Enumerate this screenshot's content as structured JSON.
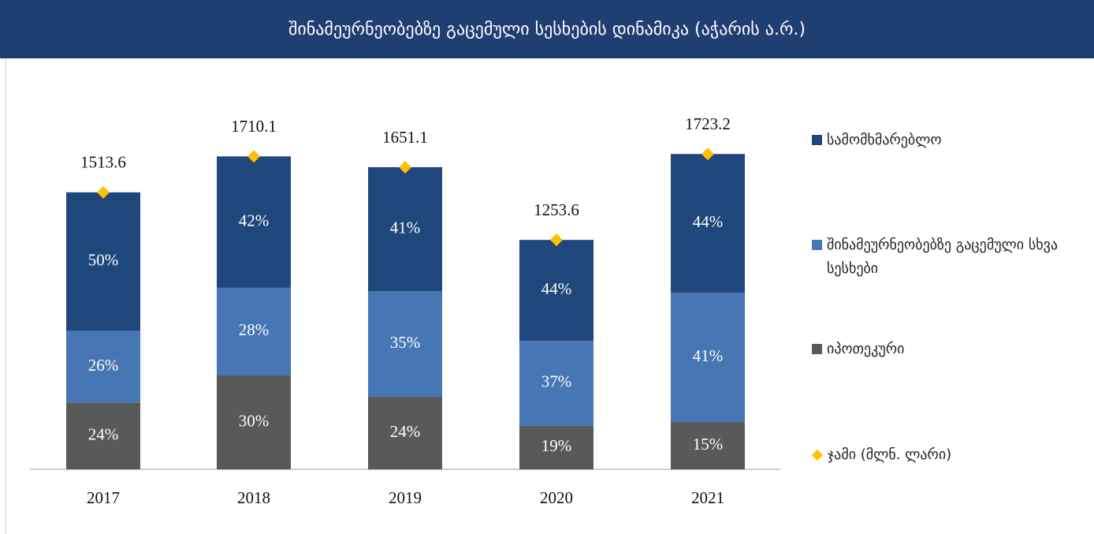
{
  "chart_data": {
    "type": "stacked_bar",
    "title": "შინამეურნეობებზე გაცემული სესხების დინამიკა (აჭარის ა.რ.)",
    "categories": [
      "2017",
      "2018",
      "2019",
      "2020",
      "2021"
    ],
    "series": [
      {
        "name": "სამომხმარებლო",
        "color": "#1f477b",
        "values": [
          50,
          42,
          41,
          44,
          44
        ],
        "value_labels": [
          "50%",
          "42%",
          "41%",
          "44%",
          "44%"
        ]
      },
      {
        "name": "შინამეურნეობებზე გაცემული სხვა სესხები",
        "color": "#4676b3",
        "values": [
          26,
          28,
          35,
          37,
          41
        ],
        "value_labels": [
          "26%",
          "28%",
          "35%",
          "37%",
          "41%"
        ]
      },
      {
        "name": "იპოთეკური",
        "color": "#595959",
        "values": [
          24,
          30,
          24,
          19,
          15
        ],
        "value_labels": [
          "24%",
          "30%",
          "24%",
          "19%",
          "15%"
        ]
      }
    ],
    "total": {
      "name": "ჯამი (მლნ. ლარი)",
      "color": "#ffc000",
      "values": [
        1513.6,
        1710.1,
        1651.1,
        1253.6,
        1723.2
      ]
    },
    "ylim": [
      0,
      2000
    ]
  }
}
